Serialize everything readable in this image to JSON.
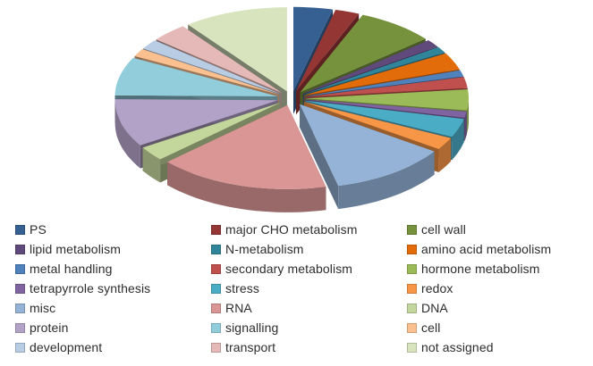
{
  "figure": {
    "background_color": "#FFFFFF",
    "text_color": "#2D2D2D",
    "title": ""
  },
  "chart_data": {
    "type": "pie",
    "style": "3d-exploded",
    "title": "",
    "data_labels": "none",
    "start_angle_deg": -90,
    "direction": "clockwise",
    "unit": "percent-of-total (estimated from slice angles)",
    "legend": {
      "position": "bottom",
      "columns": 3,
      "order": "row-major"
    },
    "categories": [
      "PS",
      "major CHO metabolism",
      "cell wall",
      "lipid metabolism",
      "N-metabolism",
      "amino acid metabolism",
      "metal handling",
      "secondary metabolism",
      "hormone metabolism",
      "tetrapyrrole synthesis",
      "stress",
      "redox",
      "misc",
      "RNA",
      "DNA",
      "protein",
      "signalling",
      "cell",
      "development",
      "transport",
      "not assigned"
    ],
    "values": [
      3.9,
      2.4,
      7.7,
      1.5,
      1.2,
      3.3,
      1.2,
      2.1,
      4.0,
      1.2,
      3.6,
      2.4,
      11.7,
      17.0,
      2.8,
      9.2,
      7.4,
      1.5,
      1.9,
      3.6,
      10.4
    ],
    "colors": [
      "#376092",
      "#943634",
      "#76923C",
      "#604A7B",
      "#31859B",
      "#E36C0A",
      "#4F81BD",
      "#C0504D",
      "#9BBB59",
      "#8064A2",
      "#4BACC6",
      "#F79646",
      "#95B3D7",
      "#D99694",
      "#C3D69B",
      "#B2A2C7",
      "#92CDDC",
      "#FAC08F",
      "#B8CCE4",
      "#E5B9B7",
      "#D7E4BD"
    ]
  }
}
